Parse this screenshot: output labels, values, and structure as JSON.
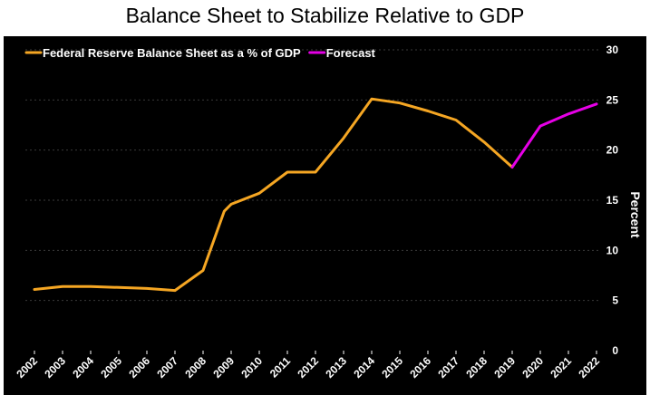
{
  "chart_data": {
    "type": "line",
    "title": "Balance Sheet to Stabilize Relative to GDP",
    "xlabel": "",
    "ylabel": "Percent",
    "ylim": [
      0,
      30
    ],
    "yticks": [
      0,
      5,
      10,
      15,
      20,
      25,
      30
    ],
    "xticks": [
      "2002",
      "2003",
      "2004",
      "2005",
      "2006",
      "2007",
      "2008",
      "2009",
      "2010",
      "2011",
      "2012",
      "2013",
      "2014",
      "2015",
      "2016",
      "2017",
      "2018",
      "2019",
      "2020",
      "2021",
      "2022"
    ],
    "grid": true,
    "legend_position": "top-left",
    "series": [
      {
        "name": "Federal Reserve Balance Sheet as a % of GDP",
        "color": "#F5A623",
        "x": [
          2002,
          2003,
          2004,
          2005,
          2006,
          2007,
          2008,
          2008.75,
          2009,
          2010,
          2011,
          2012,
          2013,
          2014,
          2015,
          2016,
          2017,
          2018,
          2019
        ],
        "values": [
          6.1,
          6.4,
          6.4,
          6.3,
          6.2,
          6.0,
          8.0,
          13.9,
          14.6,
          15.7,
          17.8,
          17.8,
          21.2,
          25.1,
          24.7,
          23.9,
          23.0,
          20.8,
          18.3
        ]
      },
      {
        "name": "Forecast",
        "color": "#E600E6",
        "x": [
          2019,
          2020,
          2021,
          2022
        ],
        "values": [
          18.3,
          22.4,
          23.6,
          24.6
        ]
      }
    ]
  }
}
